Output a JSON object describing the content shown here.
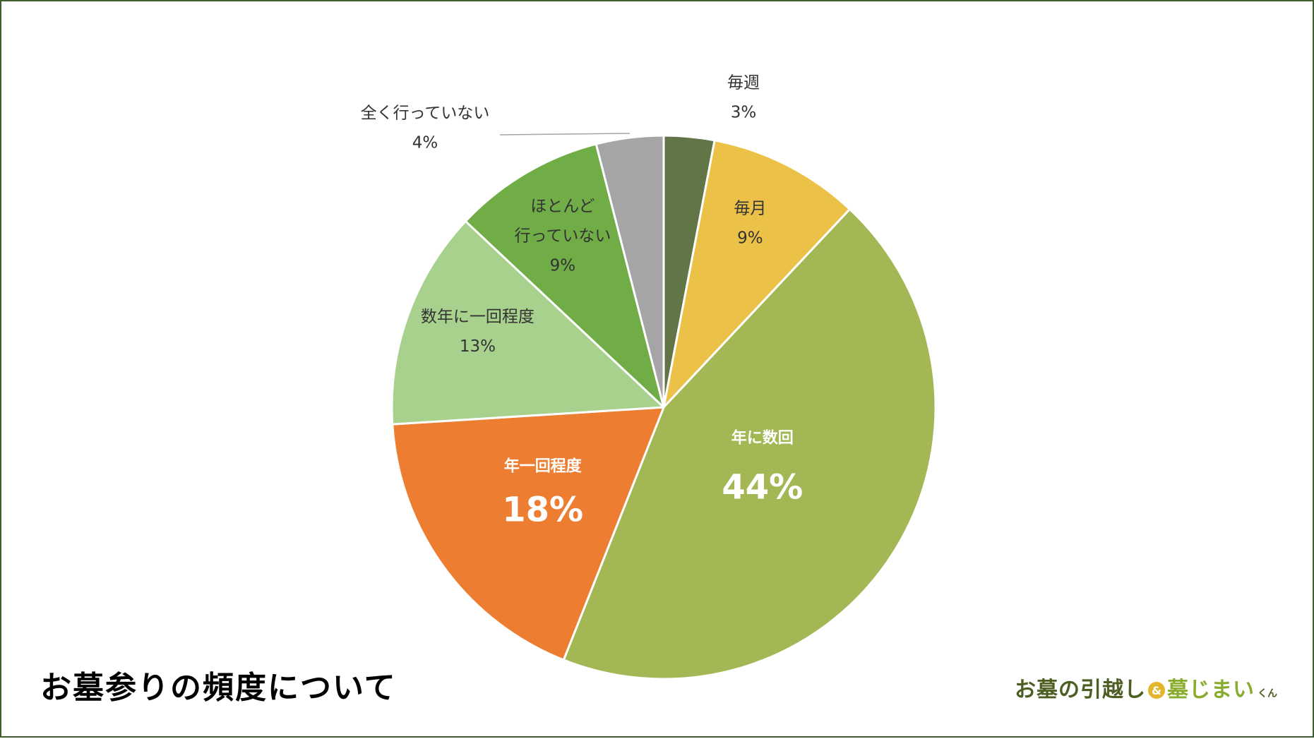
{
  "caption": "お墓参りの頻度について",
  "logo": {
    "part1": "お墓の引越し",
    "amp": "&",
    "part2": "墓じまい",
    "suffix": "くん"
  },
  "chart_data": {
    "type": "pie",
    "title": "",
    "start_angle_deg": 0,
    "direction": "clockwise",
    "slices": [
      {
        "label": "毎週",
        "value": 3,
        "pct_label": "3%",
        "color": "#627546"
      },
      {
        "label": "毎月",
        "value": 9,
        "pct_label": "9%",
        "color": "#ecc148"
      },
      {
        "label": "年に数回",
        "value": 44,
        "pct_label": "44%",
        "color": "#a3b755"
      },
      {
        "label": "年一回程度",
        "value": 18,
        "pct_label": "18%",
        "color": "#ed7d31"
      },
      {
        "label": "数年に一回程度",
        "value": 13,
        "pct_label": "13%",
        "color": "#a9d18e"
      },
      {
        "label": "ほとんど\n行っていない",
        "value": 9,
        "pct_label": "9%",
        "color": "#70ad47"
      },
      {
        "label": "全く行っていない",
        "value": 4,
        "pct_label": "4%",
        "color": "#a5a5a5"
      }
    ]
  }
}
